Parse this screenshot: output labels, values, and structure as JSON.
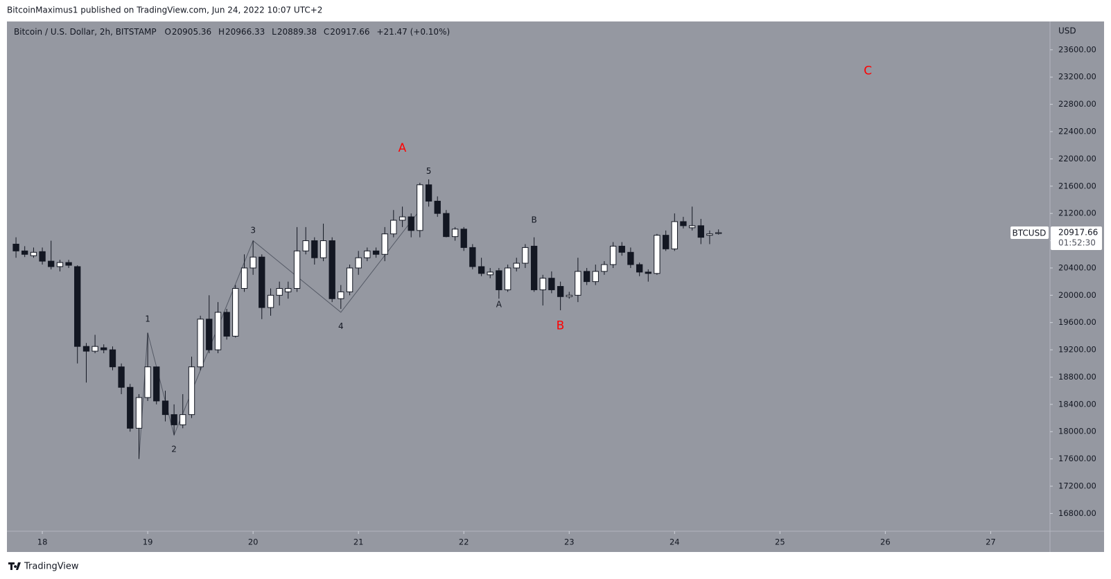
{
  "page": {
    "byline": "BitcoinMaximus1 published on TradingView.com, Jun 24, 2022 10:07 UTC+2",
    "brand": "TradingView"
  },
  "chart_data": {
    "type": "candlestick",
    "title": "Bitcoin / U.S. Dollar, 2h, BITSTAMP",
    "ohlc_labels": [
      "O",
      "H",
      "L",
      "C"
    ],
    "change": "+21.47 (+0.10%)",
    "axis_unit": "USD",
    "symbol": "BTCUSD",
    "countdown": "01:52:30",
    "background": "#9598a1",
    "up_color": "#ffffff",
    "down_color": "#131722",
    "grid": false,
    "x": [
      17.75,
      17.833,
      17.917,
      18,
      18.083,
      18.167,
      18.25,
      18.333,
      18.417,
      18.5,
      18.583,
      18.667,
      18.75,
      18.833,
      18.917,
      19,
      19.083,
      19.167,
      19.25,
      19.333,
      19.417,
      19.5,
      19.583,
      19.667,
      19.75,
      19.833,
      19.917,
      20,
      20.083,
      20.167,
      20.25,
      20.333,
      20.417,
      20.5,
      20.583,
      20.667,
      20.75,
      20.833,
      20.917,
      21,
      21.083,
      21.167,
      21.25,
      21.333,
      21.417,
      21.5,
      21.583,
      21.667,
      21.75,
      21.833,
      21.917,
      22,
      22.083,
      22.167,
      22.25,
      22.333,
      22.417,
      22.5,
      22.583,
      22.667,
      22.75,
      22.833,
      22.917,
      23,
      23.083,
      23.167,
      23.25,
      23.333,
      23.417,
      23.5,
      23.583,
      23.667,
      23.75,
      23.833,
      23.917,
      24,
      24.083,
      24.167,
      24.25,
      24.333,
      24.417
    ],
    "open": [
      20750,
      20650,
      20580,
      20640,
      20500,
      20420,
      20480,
      20420,
      19250,
      19180,
      19230,
      19200,
      18950,
      18650,
      18050,
      18500,
      18950,
      18450,
      18250,
      18100,
      18250,
      18950,
      19650,
      19200,
      19750,
      19400,
      20100,
      20400,
      20560,
      19820,
      20000,
      20050,
      20100,
      20650,
      20800,
      20550,
      20800,
      19950,
      20050,
      20400,
      20550,
      20650,
      20600,
      20900,
      21100,
      21150,
      20950,
      21620,
      21380,
      21200,
      20860,
      20970,
      20700,
      20420,
      20300,
      20360,
      20080,
      20400,
      20470,
      20720,
      20080,
      20250,
      20130,
      19980,
      20000,
      20350,
      20200,
      20350,
      20450,
      20720,
      20630,
      20450,
      20340,
      20320,
      20880,
      20680,
      21080,
      20990,
      21020,
      20880,
      20905.36
    ],
    "high": [
      20850,
      20720,
      20700,
      20700,
      20800,
      20520,
      20520,
      20440,
      19300,
      19420,
      19280,
      19250,
      19000,
      18700,
      18550,
      19450,
      18950,
      18600,
      18400,
      18550,
      19100,
      19700,
      20000,
      19900,
      19800,
      20150,
      20600,
      20800,
      20600,
      20100,
      20200,
      20200,
      21000,
      21000,
      20850,
      21050,
      20850,
      20150,
      20450,
      20650,
      20700,
      20700,
      21000,
      21250,
      21300,
      21200,
      21650,
      21700,
      21450,
      21250,
      21000,
      21000,
      20750,
      20550,
      20400,
      20400,
      20450,
      20550,
      20750,
      20850,
      20300,
      20350,
      20200,
      20050,
      20550,
      20400,
      20450,
      20500,
      20780,
      20780,
      20700,
      20480,
      20380,
      20900,
      20950,
      21200,
      21150,
      21300,
      21120,
      20950,
      20966.33
    ],
    "low": [
      20550,
      20560,
      20550,
      20450,
      20380,
      20350,
      20400,
      19000,
      18720,
      19150,
      19150,
      18900,
      18550,
      18000,
      17600,
      18450,
      18400,
      18150,
      17950,
      18050,
      18200,
      18900,
      19150,
      19150,
      19350,
      19380,
      20050,
      20300,
      19650,
      19700,
      19850,
      19950,
      20050,
      20600,
      20450,
      20500,
      19900,
      19800,
      20000,
      20300,
      20500,
      20550,
      20500,
      20850,
      21000,
      20850,
      20850,
      21300,
      21150,
      20850,
      20800,
      20650,
      20380,
      20280,
      20250,
      19950,
      20050,
      20350,
      20400,
      20050,
      19850,
      20030,
      19780,
      19950,
      19900,
      20150,
      20150,
      20300,
      20400,
      20580,
      20400,
      20280,
      20200,
      20300,
      20650,
      20650,
      20980,
      20950,
      20750,
      20750,
      20889.38
    ],
    "close": [
      20650,
      20600,
      20630,
      20500,
      20420,
      20480,
      20440,
      19250,
      19180,
      19250,
      19200,
      18950,
      18650,
      18050,
      18500,
      18950,
      18450,
      18250,
      18100,
      18250,
      18950,
      19650,
      19200,
      19750,
      19400,
      20100,
      20400,
      20560,
      19820,
      20000,
      20100,
      20100,
      20650,
      20800,
      20550,
      20800,
      19950,
      20050,
      20400,
      20550,
      20650,
      20600,
      20900,
      21100,
      21150,
      20950,
      21620,
      21380,
      21200,
      20860,
      20970,
      20700,
      20420,
      20320,
      20340,
      20080,
      20400,
      20470,
      20700,
      20080,
      20250,
      20080,
      19980,
      20000,
      20350,
      20200,
      20350,
      20450,
      20720,
      20630,
      20450,
      20340,
      20320,
      20880,
      20680,
      21080,
      21020,
      21020,
      20850,
      20900,
      20917.66
    ],
    "xlim": [
      17.664,
      27.563
    ],
    "xticks": [
      18,
      19,
      20,
      21,
      22,
      23,
      24,
      25,
      26,
      27
    ],
    "ylim": [
      16540,
      24015
    ],
    "yticks": [
      {
        "value": 16800,
        "label": "16800.00"
      },
      {
        "value": 17200,
        "label": "17200.00"
      },
      {
        "value": 17600,
        "label": "17600.00"
      },
      {
        "value": 18000,
        "label": "18000.00"
      },
      {
        "value": 18400,
        "label": "18400.00"
      },
      {
        "value": 18800,
        "label": "18800.00"
      },
      {
        "value": 19200,
        "label": "19200.00"
      },
      {
        "value": 19600,
        "label": "19600.00"
      },
      {
        "value": 20000,
        "label": "20000.00"
      },
      {
        "value": 20400,
        "label": "20400.00"
      },
      {
        "value": 20800,
        "label": "20800.00"
      },
      {
        "value": 21200,
        "label": "21200.00"
      },
      {
        "value": 21600,
        "label": "21600.00"
      },
      {
        "value": 22000,
        "label": "22000.00"
      },
      {
        "value": 22400,
        "label": "22400.00"
      },
      {
        "value": 22800,
        "label": "22800.00"
      },
      {
        "value": 23200,
        "label": "23200.00"
      },
      {
        "value": 23600,
        "label": "23600.00"
      }
    ],
    "annotations": [
      {
        "text": "1",
        "x": 19.0,
        "y": 19650,
        "color": "#131722"
      },
      {
        "text": "2",
        "x": 19.25,
        "y": 17740,
        "color": "#131722"
      },
      {
        "text": "3",
        "x": 20.0,
        "y": 20950,
        "color": "#131722"
      },
      {
        "text": "4",
        "x": 20.833,
        "y": 19540,
        "color": "#131722"
      },
      {
        "text": "5",
        "x": 21.667,
        "y": 21814,
        "color": "#131722"
      },
      {
        "text": "A",
        "x": 22.333,
        "y": 19860,
        "color": "#131722"
      },
      {
        "text": "B",
        "x": 22.667,
        "y": 21100,
        "color": "#131722"
      },
      {
        "text": "A",
        "x": 21.416,
        "y": 22157,
        "color": "#ff0000"
      },
      {
        "text": "B",
        "x": 22.916,
        "y": 19550,
        "color": "#ff0000"
      },
      {
        "text": "C",
        "x": 25.834,
        "y": 23290,
        "color": "#ff0000"
      }
    ],
    "wave_line": {
      "x": [
        18.917,
        19.0,
        19.25,
        20.0,
        20.833,
        21.583
      ],
      "y": [
        17600,
        19450,
        17950,
        20800,
        19750,
        21250
      ],
      "color": "#555a66"
    }
  }
}
